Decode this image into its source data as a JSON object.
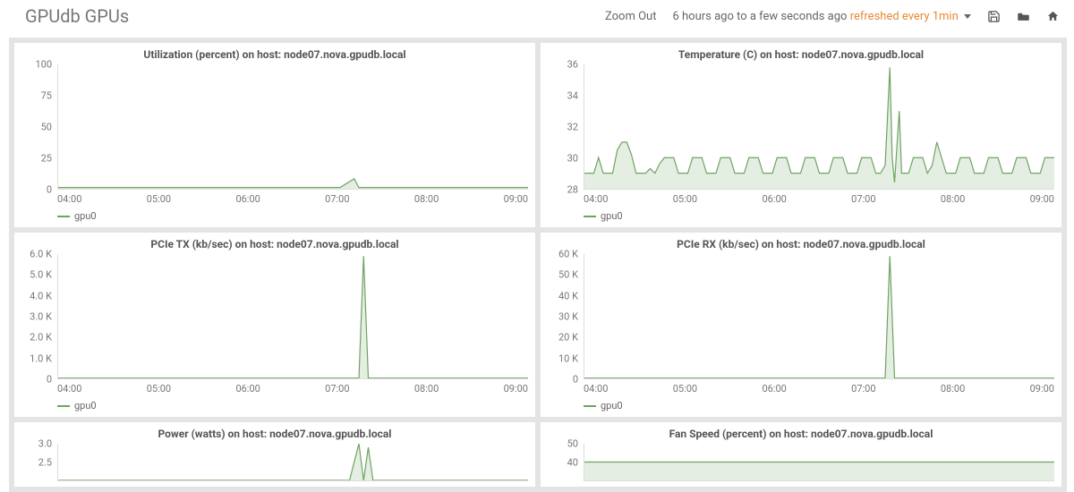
{
  "header": {
    "title": "GPUdb GPUs",
    "zoom_out": "Zoom Out",
    "time_range": "6 hours ago to a few seconds ago",
    "refresh_label": "refreshed every 1min"
  },
  "colors": {
    "series": "#6fa362",
    "series_fill": "rgba(111,163,98,0.18)",
    "axis_text": "#777",
    "panel_bg": "#ffffff",
    "outer_bg": "#e4e4e4"
  },
  "xticks": [
    "04:00",
    "05:00",
    "06:00",
    "07:00",
    "08:00",
    "09:00"
  ],
  "panels": [
    {
      "id": "util",
      "title": "Utilization (percent) on host: node07.nova.gpudb.local",
      "ymin": 0,
      "ymax": 100,
      "yticks": [
        0,
        25,
        50,
        75,
        100
      ],
      "legend": "gpu0",
      "series": [
        [
          0,
          1
        ],
        [
          5,
          1
        ],
        [
          10,
          1
        ],
        [
          15,
          1
        ],
        [
          20,
          1
        ],
        [
          25,
          1
        ],
        [
          30,
          1
        ],
        [
          35,
          1
        ],
        [
          40,
          1
        ],
        [
          45,
          1
        ],
        [
          50,
          1
        ],
        [
          55,
          1
        ],
        [
          60,
          1
        ],
        [
          63,
          8
        ],
        [
          64,
          1
        ],
        [
          68,
          1
        ],
        [
          72,
          1
        ],
        [
          76,
          1
        ],
        [
          80,
          1
        ],
        [
          85,
          1
        ],
        [
          90,
          1
        ],
        [
          95,
          1
        ],
        [
          100,
          1
        ]
      ]
    },
    {
      "id": "temp",
      "title": "Temperature (C) on host: node07.nova.gpudb.local",
      "ymin": 28,
      "ymax": 36,
      "yticks": [
        28,
        30,
        32,
        34,
        36
      ],
      "legend": "gpu0",
      "series": [
        [
          0,
          29
        ],
        [
          2,
          29
        ],
        [
          3,
          30
        ],
        [
          4,
          29
        ],
        [
          6,
          29
        ],
        [
          7,
          30.5
        ],
        [
          8,
          31
        ],
        [
          9,
          31
        ],
        [
          10,
          30.2
        ],
        [
          11,
          29
        ],
        [
          13,
          29
        ],
        [
          14,
          29.3
        ],
        [
          15,
          29
        ],
        [
          16,
          29.6
        ],
        [
          17,
          30
        ],
        [
          19,
          30
        ],
        [
          20,
          29
        ],
        [
          22,
          29
        ],
        [
          23,
          30
        ],
        [
          25,
          30
        ],
        [
          26,
          29
        ],
        [
          28,
          29
        ],
        [
          29,
          30
        ],
        [
          31,
          30
        ],
        [
          32,
          29
        ],
        [
          34,
          29
        ],
        [
          35,
          30
        ],
        [
          37,
          30
        ],
        [
          38,
          29
        ],
        [
          40,
          29
        ],
        [
          41,
          30
        ],
        [
          43,
          30
        ],
        [
          44,
          29
        ],
        [
          46,
          29
        ],
        [
          47,
          30
        ],
        [
          49,
          30
        ],
        [
          50,
          29
        ],
        [
          52,
          29
        ],
        [
          53,
          30
        ],
        [
          55,
          30
        ],
        [
          56,
          29
        ],
        [
          58,
          29
        ],
        [
          59,
          30
        ],
        [
          61,
          30
        ],
        [
          62,
          29
        ],
        [
          63,
          29
        ],
        [
          64,
          29.5
        ],
        [
          65,
          35.8
        ],
        [
          65.5,
          30
        ],
        [
          66,
          28.4
        ],
        [
          67,
          33
        ],
        [
          67.5,
          29
        ],
        [
          69,
          29
        ],
        [
          70,
          30
        ],
        [
          72,
          30
        ],
        [
          73,
          29
        ],
        [
          74,
          29.5
        ],
        [
          75,
          31
        ],
        [
          76,
          30
        ],
        [
          77,
          29
        ],
        [
          79,
          29
        ],
        [
          80,
          30
        ],
        [
          82,
          30
        ],
        [
          83,
          29
        ],
        [
          85,
          29
        ],
        [
          86,
          30
        ],
        [
          88,
          30
        ],
        [
          89,
          29
        ],
        [
          91,
          29
        ],
        [
          92,
          30
        ],
        [
          94,
          30
        ],
        [
          95,
          29
        ],
        [
          97,
          29
        ],
        [
          98,
          30
        ],
        [
          100,
          30
        ]
      ]
    },
    {
      "id": "pcietx",
      "title": "PCIe TX (kb/sec) on host: node07.nova.gpudb.local",
      "ymin": 0,
      "ymax": 6000,
      "yticks": [
        0,
        1000,
        2000,
        3000,
        4000,
        5000,
        6000
      ],
      "ytick_labels": [
        "0",
        "1.0 K",
        "2.0 K",
        "3.0 K",
        "4.0 K",
        "5.0 K",
        "6.0 K"
      ],
      "legend": "gpu0",
      "series": [
        [
          0,
          10
        ],
        [
          10,
          10
        ],
        [
          20,
          10
        ],
        [
          30,
          10
        ],
        [
          40,
          10
        ],
        [
          50,
          10
        ],
        [
          60,
          10
        ],
        [
          64,
          10
        ],
        [
          65,
          5900
        ],
        [
          66,
          10
        ],
        [
          70,
          10
        ],
        [
          80,
          10
        ],
        [
          90,
          10
        ],
        [
          100,
          10
        ]
      ]
    },
    {
      "id": "pcierx",
      "title": "PCIe RX (kb/sec) on host: node07.nova.gpudb.local",
      "ymin": 0,
      "ymax": 60000,
      "yticks": [
        0,
        10000,
        20000,
        30000,
        40000,
        50000,
        60000
      ],
      "ytick_labels": [
        "0",
        "10 K",
        "20 K",
        "30 K",
        "40 K",
        "50 K",
        "60 K"
      ],
      "legend": "gpu0",
      "series": [
        [
          0,
          100
        ],
        [
          10,
          100
        ],
        [
          20,
          100
        ],
        [
          30,
          100
        ],
        [
          40,
          100
        ],
        [
          50,
          100
        ],
        [
          60,
          100
        ],
        [
          64,
          100
        ],
        [
          65,
          59000
        ],
        [
          66,
          100
        ],
        [
          70,
          100
        ],
        [
          80,
          100
        ],
        [
          90,
          100
        ],
        [
          100,
          100
        ]
      ]
    },
    {
      "id": "power",
      "title": "Power (watts) on host: node07.nova.gpudb.local",
      "ymin": 2.0,
      "ymax": 3.0,
      "yticks": [
        2.5,
        3.0
      ],
      "ytick_labels": [
        "2.5",
        "3.0"
      ],
      "legend": "gpu0",
      "short": true,
      "series": [
        [
          0,
          2.0
        ],
        [
          62,
          2.0
        ],
        [
          64,
          3.0
        ],
        [
          65,
          2.0
        ],
        [
          66,
          2.9
        ],
        [
          67,
          2.0
        ],
        [
          100,
          2.0
        ]
      ]
    },
    {
      "id": "fan",
      "title": "Fan Speed (percent) on host: node07.nova.gpudb.local",
      "ymin": 30,
      "ymax": 50,
      "yticks": [
        40,
        50
      ],
      "ytick_labels": [
        "40",
        "50"
      ],
      "legend": "gpu0",
      "short": true,
      "series": [
        [
          0,
          40
        ],
        [
          60,
          40
        ],
        [
          64,
          40
        ],
        [
          65,
          40
        ],
        [
          66,
          40
        ],
        [
          100,
          40
        ]
      ]
    }
  ]
}
